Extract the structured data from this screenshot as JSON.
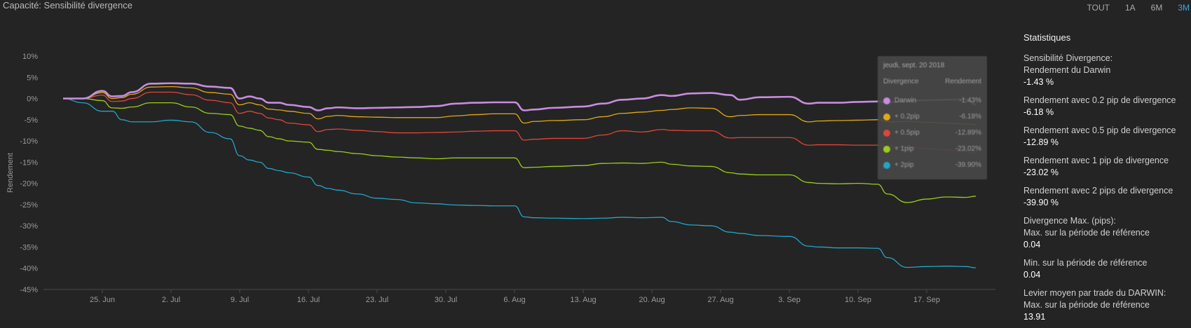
{
  "header": {
    "title": "Capacité: Sensibilité divergence",
    "range_tabs": [
      {
        "label": "TOUT",
        "active": false
      },
      {
        "label": "1A",
        "active": false
      },
      {
        "label": "6M",
        "active": false
      },
      {
        "label": "3M",
        "active": true
      }
    ]
  },
  "colors": {
    "darwin": "#c78ce0",
    "pip02": "#e0a81c",
    "pip05": "#e0453a",
    "pip1": "#9acd1a",
    "pip2": "#22a5c8",
    "accent": "#3da5e8"
  },
  "chart_data": {
    "type": "line",
    "ylabel": "Rendement",
    "xlabel": "",
    "ylim": [
      -45,
      10
    ],
    "yticks": [
      10,
      5,
      0,
      -5,
      -10,
      -15,
      -20,
      -25,
      -30,
      -35,
      -40,
      -45
    ],
    "ytick_labels": [
      "10%",
      "5%",
      "0%",
      "-5%",
      "-10%",
      "-15%",
      "-20%",
      "-25%",
      "-30%",
      "-35%",
      "-40%",
      "-45%"
    ],
    "xlim": [
      -6,
      91
    ],
    "xticks": [
      0,
      7,
      14,
      21,
      28,
      35,
      42,
      49,
      56,
      63,
      70,
      77,
      84
    ],
    "xtick_labels": [
      "25. Jun",
      "2. Jul",
      "9. Jul",
      "16. Jul",
      "23. Jul",
      "30. Jul",
      "6. Aug",
      "13. Aug",
      "20. Aug",
      "27. Aug",
      "3. Sep",
      "10. Sep",
      "17. Sep"
    ],
    "x": [
      -4,
      -2,
      0,
      1,
      2,
      3,
      5,
      7,
      9,
      11,
      13,
      14,
      15,
      16,
      17,
      18,
      19,
      21,
      22,
      23,
      24,
      26,
      28,
      30,
      32,
      34,
      36,
      38,
      40,
      42,
      43,
      44,
      46,
      49,
      51,
      53,
      55,
      57,
      58,
      60,
      62,
      64,
      65,
      67,
      70,
      72,
      73,
      75,
      77,
      79,
      80,
      82,
      84,
      86,
      88,
      89
    ],
    "series": [
      {
        "key": "darwin",
        "values": [
          0,
          0,
          1.8,
          0.5,
          0.6,
          1.5,
          3.5,
          3.6,
          3.5,
          2.8,
          2.5,
          0,
          0.5,
          0,
          -1,
          -1,
          -1.5,
          -2,
          -2.8,
          -2.3,
          -2.1,
          -2.3,
          -2.2,
          -2.1,
          -2.0,
          -1.8,
          -1.2,
          -1.0,
          -0.9,
          -0.9,
          -2.8,
          -2.6,
          -2.2,
          -1.9,
          -1.2,
          -0.3,
          0,
          0.8,
          0.6,
          1.2,
          1.3,
          0.8,
          -0.3,
          0.3,
          0.4,
          -1.2,
          -1.0,
          -1.0,
          -0.8,
          -0.7,
          -0.9,
          -0.6,
          -0.4,
          -0.3,
          -0.2,
          -1.43
        ]
      },
      {
        "key": "pip02",
        "values": [
          0,
          0,
          1.4,
          0,
          0.2,
          1,
          2.7,
          2.8,
          2.5,
          1.4,
          1,
          -1.5,
          -1,
          -1.5,
          -2.5,
          -2.7,
          -3,
          -3.5,
          -4.8,
          -4.2,
          -4.0,
          -4.3,
          -4.4,
          -4.5,
          -4.5,
          -4.5,
          -4.1,
          -3.8,
          -3.6,
          -3.6,
          -5.8,
          -5.4,
          -5.2,
          -5.0,
          -4.3,
          -3.5,
          -3.2,
          -2.8,
          -2.6,
          -2.2,
          -2.3,
          -4.3,
          -4.0,
          -3.8,
          -3.8,
          -5.5,
          -5.3,
          -5.2,
          -5.1,
          -5.0,
          -5.5,
          -5.4,
          -5.6,
          -5.8,
          -6.0,
          -6.18
        ]
      },
      {
        "key": "pip05",
        "values": [
          0,
          0,
          0.8,
          -0.7,
          -0.6,
          0,
          1.5,
          1.5,
          0.9,
          -0.4,
          -1,
          -3.5,
          -3,
          -3.5,
          -4.6,
          -5,
          -5.8,
          -6.2,
          -7.8,
          -7.3,
          -7.2,
          -7.5,
          -7.8,
          -8.1,
          -8.1,
          -8.0,
          -7.9,
          -7.7,
          -7.6,
          -7.6,
          -9.8,
          -9.6,
          -9.4,
          -9.4,
          -8.6,
          -7.6,
          -7.9,
          -7.3,
          -7.5,
          -7.6,
          -7.6,
          -9.3,
          -9.2,
          -9.2,
          -9.2,
          -11,
          -10.9,
          -10.9,
          -11.0,
          -11.0,
          -11.3,
          -11.5,
          -11.8,
          -12.1,
          -12.5,
          -12.89
        ]
      },
      {
        "key": "pip1",
        "values": [
          0,
          0,
          -0.5,
          -2.2,
          -2.3,
          -2,
          -1,
          -1,
          -2,
          -3.5,
          -3.8,
          -6.5,
          -7,
          -7.5,
          -9,
          -9.5,
          -10,
          -10.3,
          -12.0,
          -12.2,
          -12.5,
          -13,
          -13.5,
          -13.8,
          -14,
          -14.2,
          -14,
          -14,
          -14,
          -14,
          -16.3,
          -16.2,
          -16,
          -15.8,
          -15.3,
          -15.2,
          -15.3,
          -15.0,
          -15.5,
          -15.9,
          -16,
          -17.5,
          -17.8,
          -18,
          -18,
          -19.8,
          -20,
          -20.1,
          -20,
          -20.2,
          -22.5,
          -24.5,
          -23.7,
          -23.2,
          -23.3,
          -23.02
        ]
      },
      {
        "key": "pip2",
        "values": [
          0,
          -1,
          -3,
          -3,
          -5,
          -5.5,
          -5.5,
          -5.1,
          -5.5,
          -8,
          -9.5,
          -13.5,
          -14.5,
          -15,
          -16.5,
          -17,
          -17.5,
          -18.5,
          -20.5,
          -21.2,
          -21.6,
          -22.5,
          -23.5,
          -23.8,
          -24.6,
          -24.8,
          -25.1,
          -25.2,
          -25.3,
          -25.3,
          -27.9,
          -28.1,
          -28.2,
          -28.3,
          -28.2,
          -28.0,
          -28.1,
          -28.0,
          -29,
          -29.8,
          -30,
          -31.5,
          -31.8,
          -32.3,
          -32.5,
          -34.8,
          -35.0,
          -35.2,
          -35.2,
          -35.3,
          -37.5,
          -39.8,
          -39.6,
          -39.5,
          -39.6,
          -39.9
        ]
      }
    ]
  },
  "tooltip": {
    "date": "jeudi, sept. 20 2018",
    "col_divergence": "Divergence",
    "col_rendement": "Rendement",
    "rows": [
      {
        "color_key": "darwin",
        "label": "Darwin",
        "value": "-1.43%"
      },
      {
        "color_key": "pip02",
        "label": "+ 0.2pip",
        "value": "-6.18%"
      },
      {
        "color_key": "pip05",
        "label": "+ 0.5pip",
        "value": "-12.89%"
      },
      {
        "color_key": "pip1",
        "label": "+ 1pip",
        "value": "-23.02%"
      },
      {
        "color_key": "pip2",
        "label": "+ 2pip",
        "value": "-39.90%"
      }
    ]
  },
  "stats": {
    "title": "Statistiques",
    "items": [
      {
        "label": "Sensibilité Divergence:",
        "sublabel": "Rendement du Darwin",
        "value": "-1.43 %"
      },
      {
        "label": "Rendement avec 0.2 pip de divergence",
        "sublabel": "",
        "value": "-6.18 %"
      },
      {
        "label": "Rendement avec 0.5 pip de divergence",
        "sublabel": "",
        "value": "-12.89 %"
      },
      {
        "label": "Rendement avec 1 pip de divergence",
        "sublabel": "",
        "value": "-23.02 %"
      },
      {
        "label": "Rendement avec 2 pips de divergence",
        "sublabel": "",
        "value": "-39.90 %"
      },
      {
        "label": "Divergence Max. (pips):",
        "sublabel": "Max. sur la période de référence",
        "value": "0.04"
      },
      {
        "label": "Min. sur la période de référence",
        "sublabel": "",
        "value": "0.04"
      },
      {
        "label": "Levier moyen par trade du DARWIN:",
        "sublabel": "Max. sur la période de référence",
        "value": "13.91"
      }
    ]
  }
}
